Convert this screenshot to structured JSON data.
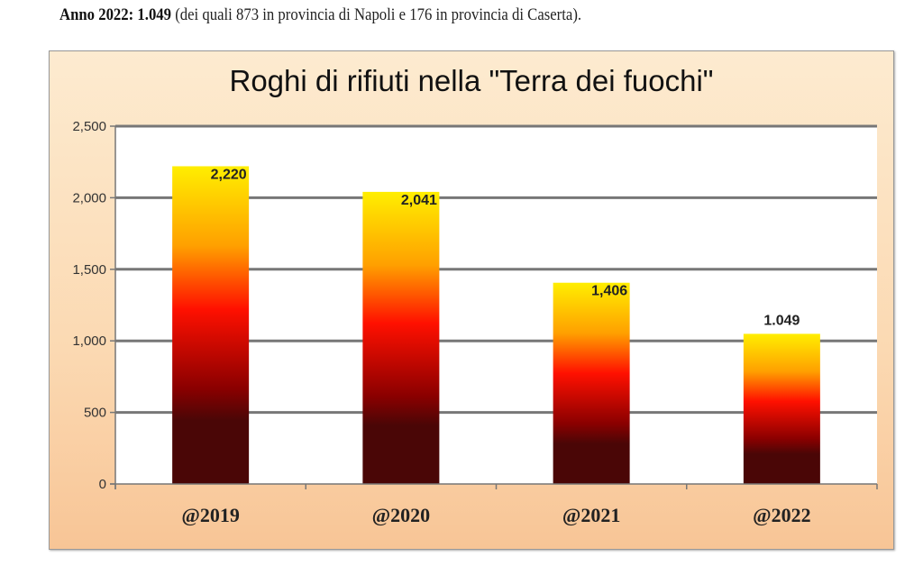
{
  "caption": {
    "bold": "Anno 2022: 1.049",
    "rest": " (dei quali 873 in provincia di Napoli e 176 in provincia di Caserta)."
  },
  "chart_data": {
    "type": "bar",
    "title": "Roghi di rifiuti nella \"Terra dei fuochi\"",
    "categories": [
      "@2019",
      "@2020",
      "@2021",
      "@2022"
    ],
    "values": [
      2220,
      2041,
      1406,
      1049
    ],
    "data_labels": [
      "2,220",
      "2,041",
      "1,406",
      "1.049"
    ],
    "ylim": [
      0,
      2500
    ],
    "yticks": [
      0,
      500,
      1000,
      1500,
      2000,
      2500
    ],
    "ytick_labels": [
      "0",
      "500",
      "1,000",
      "1,500",
      "2,000",
      "2,500"
    ],
    "grid": true,
    "legend": "none",
    "bar_gradient": [
      "#ffee00",
      "#ffa000",
      "#ff1000",
      "#8a0000",
      "#4a0606"
    ]
  }
}
